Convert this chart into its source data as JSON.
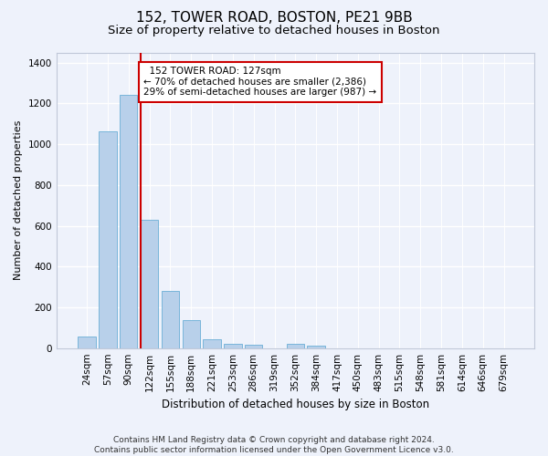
{
  "title_line1": "152, TOWER ROAD, BOSTON, PE21 9BB",
  "title_line2": "Size of property relative to detached houses in Boston",
  "xlabel": "Distribution of detached houses by size in Boston",
  "ylabel": "Number of detached properties",
  "categories": [
    "24sqm",
    "57sqm",
    "90sqm",
    "122sqm",
    "155sqm",
    "188sqm",
    "221sqm",
    "253sqm",
    "286sqm",
    "319sqm",
    "352sqm",
    "384sqm",
    "417sqm",
    "450sqm",
    "483sqm",
    "515sqm",
    "548sqm",
    "581sqm",
    "614sqm",
    "646sqm",
    "679sqm"
  ],
  "values": [
    55,
    1065,
    1240,
    630,
    280,
    135,
    42,
    20,
    15,
    0,
    20,
    10,
    0,
    0,
    0,
    0,
    0,
    0,
    0,
    0,
    0
  ],
  "bar_color": "#b8d0ea",
  "bar_edgecolor": "#6aaed6",
  "vline_color": "#cc0000",
  "vline_xindex": 3,
  "annotation_text": "  152 TOWER ROAD: 127sqm\n← 70% of detached houses are smaller (2,386)\n29% of semi-detached houses are larger (987) →",
  "annotation_box_edgecolor": "#cc0000",
  "annotation_box_facecolor": "#ffffff",
  "ylim": [
    0,
    1450
  ],
  "yticks": [
    0,
    200,
    400,
    600,
    800,
    1000,
    1200,
    1400
  ],
  "footer": "Contains HM Land Registry data © Crown copyright and database right 2024.\nContains public sector information licensed under the Open Government Licence v3.0.",
  "bg_color": "#eef2fb",
  "plot_bg_color": "#eef2fb",
  "grid_color": "#ffffff",
  "title_fontsize": 11,
  "subtitle_fontsize": 9.5,
  "tick_fontsize": 7.5,
  "ylabel_fontsize": 8,
  "xlabel_fontsize": 8.5,
  "footer_fontsize": 6.5,
  "ann_fontsize": 7.5
}
